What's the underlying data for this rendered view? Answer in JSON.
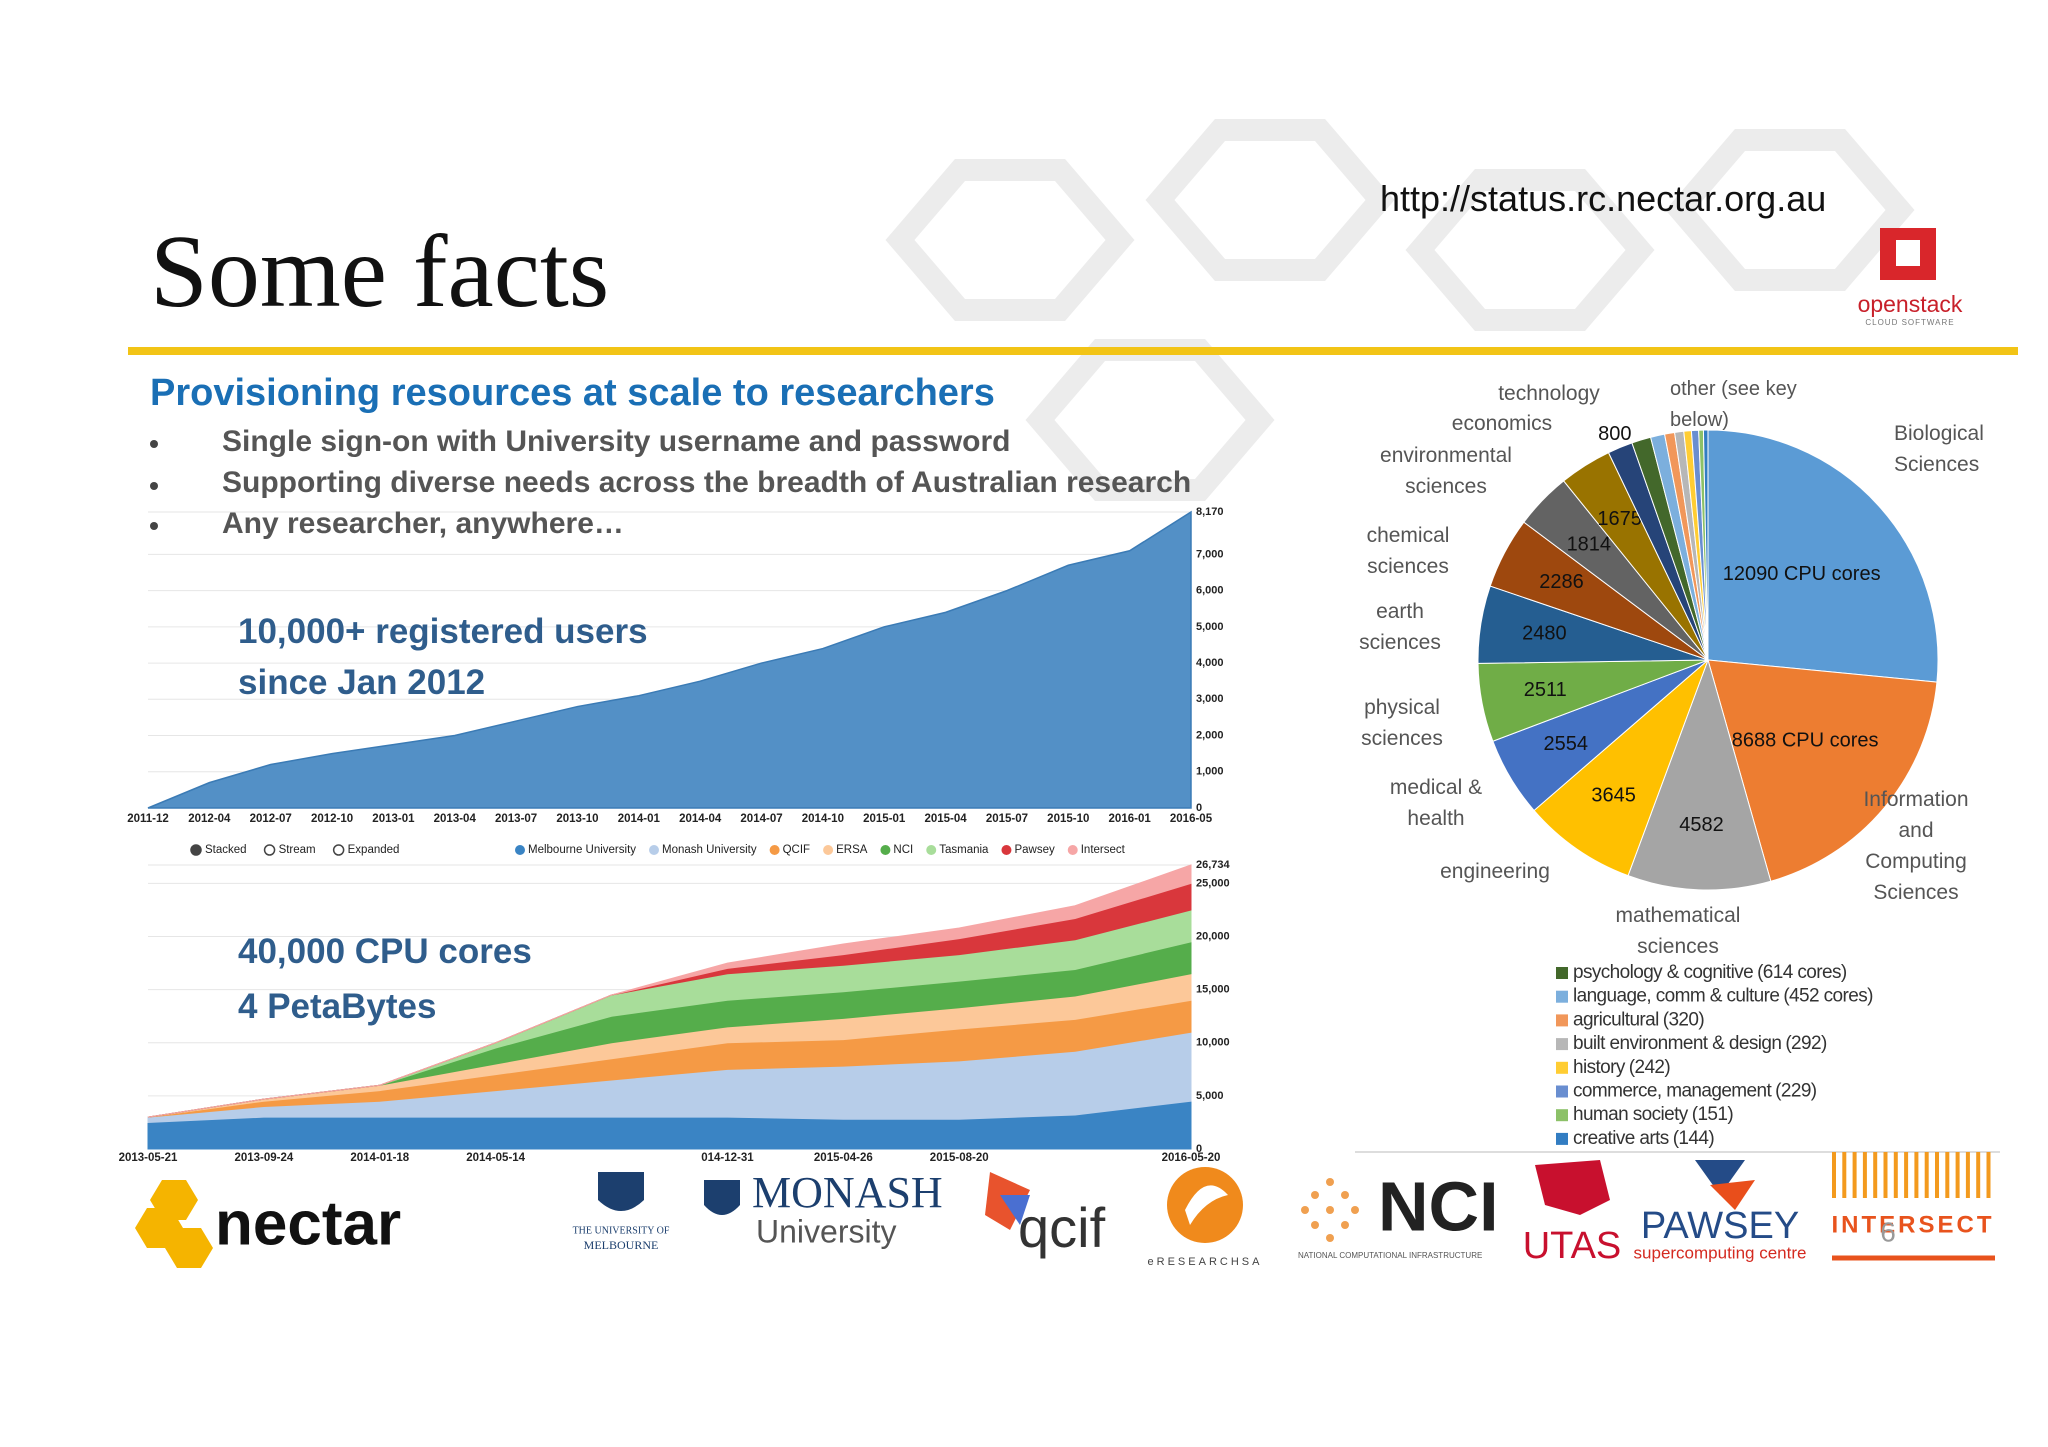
{
  "header": {
    "title": "Some facts",
    "url": "http://status.rc.nectar.org.au",
    "subtitle": "Provisioning resources at scale to researchers",
    "bullets": [
      "Single sign-on with University username and password",
      "Supporting diverse needs across the breadth of Australian research",
      "Any researcher, anywhere…"
    ]
  },
  "chart_data": [
    {
      "type": "area",
      "annotations": [
        "10,000+ registered users",
        "since Jan 2012"
      ],
      "categories": [
        "2011-12",
        "2012-04",
        "2012-07",
        "2012-10",
        "2013-01",
        "2013-04",
        "2013-07",
        "2013-10",
        "2014-01",
        "2014-04",
        "2014-07",
        "2014-10",
        "2015-01",
        "2015-04",
        "2015-07",
        "2015-10",
        "2016-01",
        "2016-05"
      ],
      "values": [
        0,
        700,
        1200,
        1500,
        1750,
        2000,
        2400,
        2800,
        3100,
        3500,
        4000,
        4400,
        5000,
        5400,
        6000,
        6700,
        7100,
        8170
      ],
      "color": "#5390c6",
      "ylim": [
        0,
        8170
      ],
      "yticks": [
        0,
        {
          "value": 1000,
          "label": "1,000"
        },
        {
          "value": 2000,
          "label": "2,000"
        },
        {
          "value": 3000,
          "label": "3,000"
        },
        {
          "value": 4000,
          "label": "4,000"
        },
        {
          "value": 5000,
          "label": "5,000"
        },
        {
          "value": 6000,
          "label": "6,000"
        },
        {
          "value": 7000,
          "label": "7,000"
        },
        {
          "value": 8170,
          "label": "8,170"
        }
      ],
      "grid": true
    },
    {
      "type": "area",
      "stacked": true,
      "annotations": [
        "40,000 CPU cores",
        "4 PetaBytes"
      ],
      "controls": [
        "Stacked",
        "Stream",
        "Expanded"
      ],
      "selected_control": "Stacked",
      "categories": [
        "2013-05-21",
        "2013-09-24",
        "2014-01-18",
        "2014-05-14",
        null,
        "014-12-31",
        "2015-04-26",
        "2015-08-20",
        null,
        "2016-05-20"
      ],
      "series": [
        {
          "name": "Melbourne University",
          "color": "#3a84c4",
          "values": [
            2500,
            3000,
            3000,
            3000,
            3000,
            3000,
            2800,
            2800,
            3200,
            4500
          ]
        },
        {
          "name": "Monash University",
          "color": "#b7cde9",
          "values": [
            500,
            1000,
            1500,
            2500,
            3500,
            4500,
            5000,
            5500,
            6000,
            6500
          ]
        },
        {
          "name": "QCIF",
          "color": "#f59a45",
          "values": [
            0,
            500,
            1000,
            1500,
            2000,
            2500,
            2500,
            3000,
            3000,
            3000
          ]
        },
        {
          "name": "ERSA",
          "color": "#fcc899",
          "values": [
            0,
            200,
            500,
            1000,
            1500,
            1500,
            2000,
            2000,
            2200,
            2500
          ]
        },
        {
          "name": "NCI",
          "color": "#55ad4b",
          "values": [
            0,
            0,
            0,
            1500,
            2500,
            2500,
            2500,
            2500,
            2500,
            3000
          ]
        },
        {
          "name": "Tasmania",
          "color": "#a8dd9a",
          "values": [
            0,
            0,
            0,
            500,
            2000,
            2500,
            2500,
            2500,
            2800,
            3000
          ]
        },
        {
          "name": "Pawsey",
          "color": "#d9373c",
          "values": [
            0,
            0,
            0,
            0,
            0,
            500,
            1000,
            1500,
            2000,
            2500
          ]
        },
        {
          "name": "Intersect",
          "color": "#f6a6a6",
          "values": [
            0,
            0,
            0,
            0,
            0,
            500,
            1000,
            1000,
            1200,
            1734
          ]
        }
      ],
      "ylim": [
        0,
        26734
      ],
      "yticks": [
        0,
        {
          "value": 5000,
          "label": "5,000"
        },
        {
          "value": 10000,
          "label": "10,000"
        },
        {
          "value": 15000,
          "label": "15,000"
        },
        {
          "value": 20000,
          "label": "20,000"
        },
        {
          "value": 25000,
          "label": "25,000"
        },
        {
          "value": 26734,
          "label": "26,734"
        }
      ],
      "grid": true
    },
    {
      "type": "pie",
      "annotation": "other (see key below)",
      "categories": [
        "Biological Sciences",
        "Information and Computing Sciences",
        "mathematical sciences",
        "engineering",
        "medical & health",
        "physical sciences",
        "earth sciences",
        "chemical sciences",
        "environmental sciences",
        "economics",
        "technology",
        "psychology & cognitive",
        "language, comm & culture",
        "agricultural",
        "built environment & design",
        "history",
        "commerce, management",
        "human society",
        "creative arts"
      ],
      "values": [
        12090,
        8688,
        4582,
        3645,
        2554,
        2511,
        2480,
        2286,
        1814,
        1675,
        800,
        614,
        452,
        320,
        292,
        242,
        229,
        151,
        144
      ],
      "value_labels": [
        "12090 CPU cores",
        "8688 CPU cores",
        "4582",
        "3645",
        "2554",
        "2511",
        "2480",
        "2286",
        "1814",
        "1675",
        "800",
        "(614 cores)",
        "(452 cores)",
        "(320)",
        "(292)",
        "(242)",
        "(229)",
        "(151)",
        "(144)"
      ],
      "colors": [
        "#5b9bd5",
        "#ed7d31",
        "#a5a5a5",
        "#ffc000",
        "#4472c4",
        "#70ad47",
        "#255e91",
        "#9e480e",
        "#636363",
        "#997300",
        "#264478",
        "#43682b",
        "#7cafdd",
        "#f1975a",
        "#b7b7b7",
        "#ffcd33",
        "#698ed0",
        "#8cc168",
        "#327dc2"
      ]
    }
  ],
  "logos": {
    "openstack": "openstack",
    "openstack_sub": "CLOUD SOFTWARE",
    "nectar": "nectar",
    "melbourne_1": "THE UNIVERSITY OF",
    "melbourne_2": "MELBOURNE",
    "monash_1": "MONASH",
    "monash_2": "University",
    "qcif": "qcif",
    "ersa": "eRESEARCHSA",
    "nci": "NCI",
    "nci_sub": "NATIONAL COMPUTATIONAL INFRASTRUCTURE",
    "utas": "UTAS",
    "pawsey": "PAWSEY",
    "pawsey_sub": "supercomputing centre",
    "intersect": "INTERSECT"
  },
  "page_number": "6"
}
